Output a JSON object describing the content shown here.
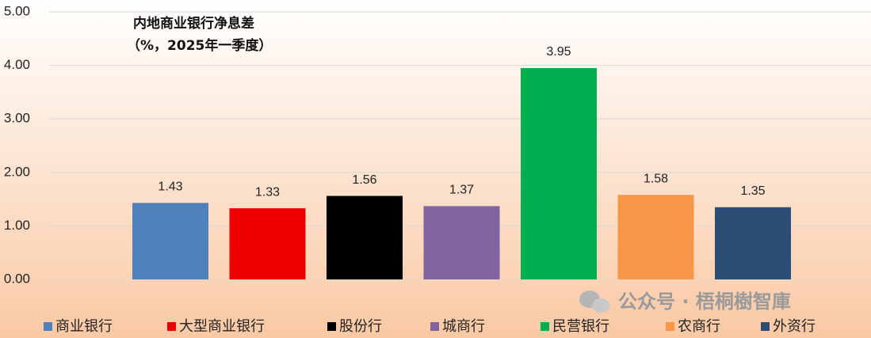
{
  "chart_data": {
    "type": "bar",
    "title": "内地商业银行净息差",
    "subtitle": "（%，2025年一季度）",
    "categories": [
      "商业银行",
      "大型商业银行",
      "股份行",
      "城商行",
      "民营银行",
      "农商行",
      "外资行"
    ],
    "values": [
      1.43,
      1.33,
      1.56,
      1.37,
      3.95,
      1.58,
      1.35
    ],
    "colors": [
      "#4f81bd",
      "#ee0000",
      "#000000",
      "#8064a2",
      "#00b050",
      "#f79646",
      "#2c4d75"
    ],
    "ylim": [
      0,
      5
    ],
    "yticks": [
      {
        "value": 0,
        "label": "0.00"
      },
      {
        "value": 1,
        "label": "1.00"
      },
      {
        "value": 2,
        "label": "2.00"
      },
      {
        "value": 3,
        "label": "3.00"
      },
      {
        "value": 4,
        "label": "4.00"
      },
      {
        "value": 5,
        "label": "5.00"
      }
    ],
    "grid": true,
    "legend": "bottom",
    "watermark": "公众号 · 梧桐樹智庫"
  }
}
